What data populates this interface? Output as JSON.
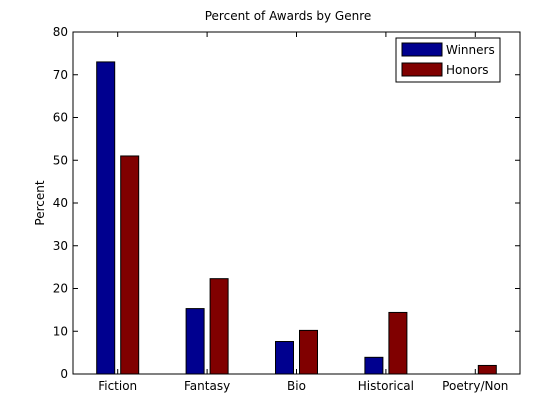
{
  "chart_data": {
    "type": "bar",
    "title": "Percent of Awards by Genre",
    "xlabel": "",
    "ylabel": "Percent",
    "ylim": [
      0,
      80
    ],
    "yticks": [
      0,
      10,
      20,
      30,
      40,
      50,
      60,
      70,
      80
    ],
    "categories": [
      "Fiction",
      "Fantasy",
      "Bio",
      "Historical",
      "Poetry/Non"
    ],
    "series": [
      {
        "name": "Winners",
        "color": "#00008F",
        "values": [
          73,
          15.3,
          7.6,
          3.9,
          0
        ]
      },
      {
        "name": "Honors",
        "color": "#800000",
        "values": [
          51,
          22.3,
          10.2,
          14.4,
          2
        ]
      }
    ],
    "legend_position": "top-right",
    "grid": false
  }
}
